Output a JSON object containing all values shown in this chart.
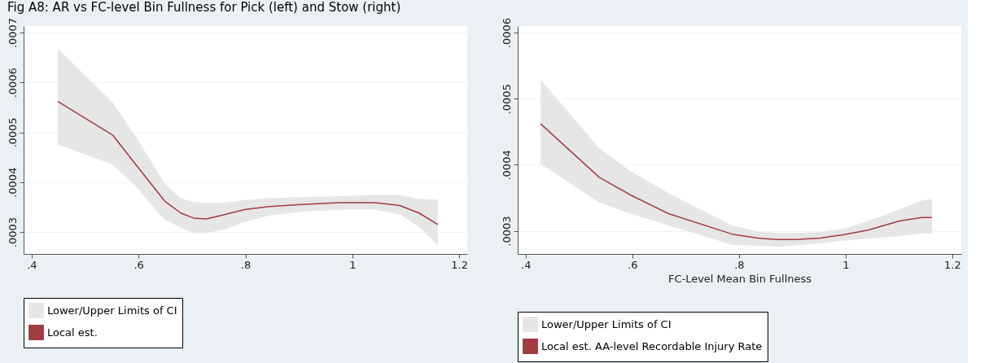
{
  "chart_data": [
    {
      "type": "line",
      "title": "Fig A8: AR vs FC-level Bin Fullness for Pick (left) and Stow (right)",
      "x": [
        0.449,
        0.552,
        0.595,
        0.649,
        0.679,
        0.703,
        0.726,
        0.762,
        0.798,
        0.845,
        0.905,
        0.976,
        1.042,
        1.089,
        1.125,
        1.16
      ],
      "series": [
        {
          "name": "Lower/Upper Limits of CI",
          "type": "area",
          "color": "#e6e6e6",
          "values": [
            null,
            null,
            null,
            null,
            null,
            null,
            null,
            null,
            null,
            null,
            null,
            null,
            null,
            null,
            null,
            null
          ],
          "lower": [
            0.000476,
            0.000435,
            0.000391,
            0.000324,
            0.000309,
            0.000298,
            0.000298,
            0.000305,
            0.00032,
            0.000333,
            0.000341,
            0.000345,
            0.000345,
            0.000335,
            0.00031,
            0.000274
          ],
          "upper": [
            0.000668,
            0.000559,
            0.000491,
            0.000397,
            0.000368,
            0.00036,
            0.000358,
            0.000359,
            0.000364,
            0.000368,
            0.00037,
            0.000372,
            0.000374,
            0.000374,
            0.000366,
            0.000365
          ]
        },
        {
          "name": "Local est.",
          "type": "line",
          "color": "#a23c42",
          "values": [
            0.000562,
            0.000494,
            0.000435,
            0.000362,
            0.000338,
            0.000328,
            0.000326,
            0.000335,
            0.000345,
            0.000351,
            0.000355,
            0.000359,
            0.000359,
            0.000353,
            0.000338,
            0.000315
          ]
        }
      ],
      "xlim": [
        0.385,
        1.215
      ],
      "xticks": [
        {
          "value": 0.4,
          "label": ".4"
        },
        {
          "value": 0.6,
          "label": ".6"
        },
        {
          "value": 0.8,
          "label": ".8"
        },
        {
          "value": 1,
          "label": "1"
        },
        {
          "value": 1.2,
          "label": "1.2"
        }
      ],
      "ylim": [
        0.000256,
        0.000713
      ],
      "yticks": [
        {
          "value": 0.0003,
          "label": ".0003"
        },
        {
          "value": 0.0004,
          "label": ".0004"
        },
        {
          "value": 0.0005,
          "label": ".0005"
        },
        {
          "value": 0.0006,
          "label": ".0006"
        },
        {
          "value": 0.0007,
          "label": ".0007"
        }
      ],
      "grid": "y",
      "legend": "bottom"
    },
    {
      "type": "line",
      "xlabel": "FC-Level Mean Bin Fullness",
      "x": [
        0.428,
        0.538,
        0.597,
        0.668,
        0.787,
        0.835,
        0.87,
        0.906,
        0.953,
        0.995,
        1.042,
        1.101,
        1.143,
        1.162
      ],
      "series": [
        {
          "name": "Lower/Upper Limits of CI",
          "type": "area",
          "color": "#e6e6e6",
          "values": [
            null,
            null,
            null,
            null,
            null,
            null,
            null,
            null,
            null,
            null,
            null,
            null,
            null,
            null
          ],
          "lower": [
            0.000401,
            0.000343,
            0.000326,
            0.000308,
            0.000279,
            0.000277,
            0.000276,
            0.000278,
            0.000281,
            0.000285,
            0.000288,
            0.000292,
            0.000296,
            0.000296
          ],
          "upper": [
            0.000529,
            0.000425,
            0.00039,
            0.000357,
            0.000308,
            0.000299,
            0.000297,
            0.000297,
            0.000298,
            0.000303,
            0.000315,
            0.000332,
            0.000346,
            0.000348
          ]
        },
        {
          "name": "Local est. AA-level Recordable Injury Rate",
          "type": "line",
          "color": "#a23c42",
          "values": [
            0.000462,
            0.000381,
            0.000354,
            0.000326,
            0.000295,
            0.000289,
            0.000287,
            0.000287,
            0.000289,
            0.000294,
            0.000301,
            0.000315,
            0.00032,
            0.00032
          ]
        }
      ],
      "xlim": [
        0.385,
        1.217
      ],
      "xticks": [
        {
          "value": 0.4,
          "label": ".4"
        },
        {
          "value": 0.6,
          "label": ".6"
        },
        {
          "value": 0.8,
          "label": ".8"
        },
        {
          "value": 1,
          "label": "1"
        },
        {
          "value": 1.2,
          "label": "1.2"
        }
      ],
      "ylim": [
        0.000265,
        0.00061
      ],
      "yticks": [
        {
          "value": 0.0003,
          "label": ".0003"
        },
        {
          "value": 0.0004,
          "label": ".0004"
        },
        {
          "value": 0.0005,
          "label": ".0005"
        },
        {
          "value": 0.0006,
          "label": ".0006"
        }
      ],
      "grid": "y",
      "legend": "bottom"
    }
  ]
}
